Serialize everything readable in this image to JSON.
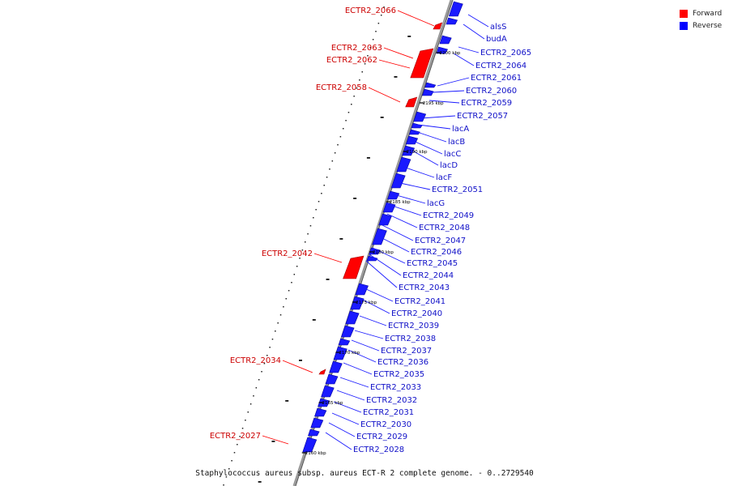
{
  "legend": {
    "forward": {
      "label": "Forward",
      "color": "#ff0000"
    },
    "reverse": {
      "label": "Reverse",
      "color": "#0000ff"
    }
  },
  "colors": {
    "forward": "#ff0000",
    "forward_dark": "#a00000",
    "reverse": "#1a1aff",
    "reverse_dark": "#00009a"
  },
  "caption": "Staphylococcus aureus subsp. aureus ECT-R 2 complete genome. - 0..2729540",
  "kbp_marks": [
    "2200 kbp",
    "2195 kbp",
    "2190 kbp",
    "2185 kbp",
    "2180 kbp",
    "2175 kbp",
    "2170 kbp",
    "2165 kbp",
    "2160 kbp"
  ],
  "forward_genes": [
    "ECTR2_2066",
    "ECTR2_2063",
    "ECTR2_2062",
    "ECTR2_2058",
    "ECTR2_2042",
    "ECTR2_2034",
    "ECTR2_2027"
  ],
  "reverse_genes": [
    "alsS",
    "budA",
    "ECTR2_2065",
    "ECTR2_2064",
    "ECTR2_2061",
    "ECTR2_2060",
    "ECTR2_2059",
    "ECTR2_2057",
    "lacA",
    "lacB",
    "lacC",
    "lacD",
    "lacF",
    "ECTR2_2051",
    "lacG",
    "ECTR2_2049",
    "ECTR2_2048",
    "ECTR2_2047",
    "ECTR2_2046",
    "ECTR2_2045",
    "ECTR2_2044",
    "ECTR2_2043",
    "ECTR2_2041",
    "ECTR2_2040",
    "ECTR2_2039",
    "ECTR2_2038",
    "ECTR2_2037",
    "ECTR2_2036",
    "ECTR2_2035",
    "ECTR2_2033",
    "ECTR2_2032",
    "ECTR2_2031",
    "ECTR2_2030",
    "ECTR2_2029",
    "ECTR2_2028"
  ]
}
